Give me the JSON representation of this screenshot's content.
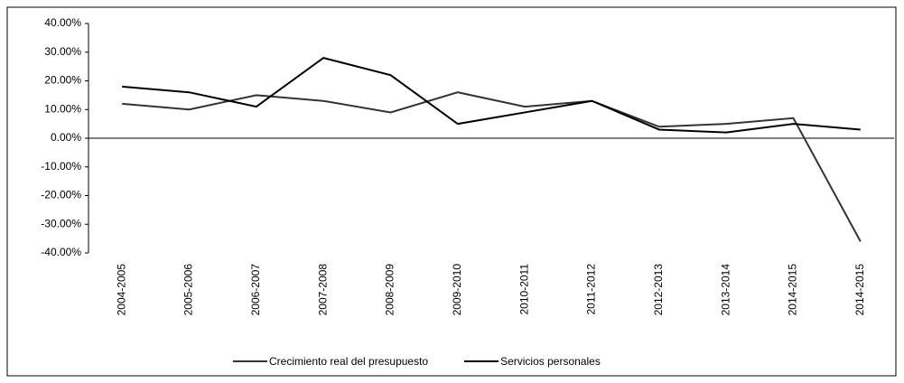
{
  "chart_data": {
    "type": "line",
    "categories": [
      "2004-2005",
      "2005-2006",
      "2006-2007",
      "2007-2008",
      "2008-2009",
      "2009-2010",
      "2010-2011",
      "2011-2012",
      "2012-2013",
      "2013-2014",
      "2014-2015",
      "2014-2015"
    ],
    "series": [
      {
        "name": "Crecimiento real del presupuesto",
        "color": "#333333",
        "values": [
          12,
          10,
          15,
          13,
          9,
          16,
          11,
          13,
          4,
          5,
          7,
          -36
        ]
      },
      {
        "name": "Servicios personales",
        "color": "#000000",
        "values": [
          18,
          16,
          11,
          28,
          22,
          5,
          9,
          13,
          3,
          2,
          5,
          3
        ]
      }
    ],
    "ylim": [
      -40,
      40
    ],
    "yticks": [
      {
        "value": -40,
        "label": "-40.00%"
      },
      {
        "value": -30,
        "label": "-30.00%"
      },
      {
        "value": -20,
        "label": "-20.00%"
      },
      {
        "value": -10,
        "label": "-10.00%"
      },
      {
        "value": 0,
        "label": "0.00%"
      },
      {
        "value": 10,
        "label": "10.00%"
      },
      {
        "value": 20,
        "label": "20.00%"
      },
      {
        "value": 30,
        "label": "30.00%"
      },
      {
        "value": 40,
        "label": "40.00%"
      }
    ],
    "grid": false,
    "legend": "bottom"
  }
}
